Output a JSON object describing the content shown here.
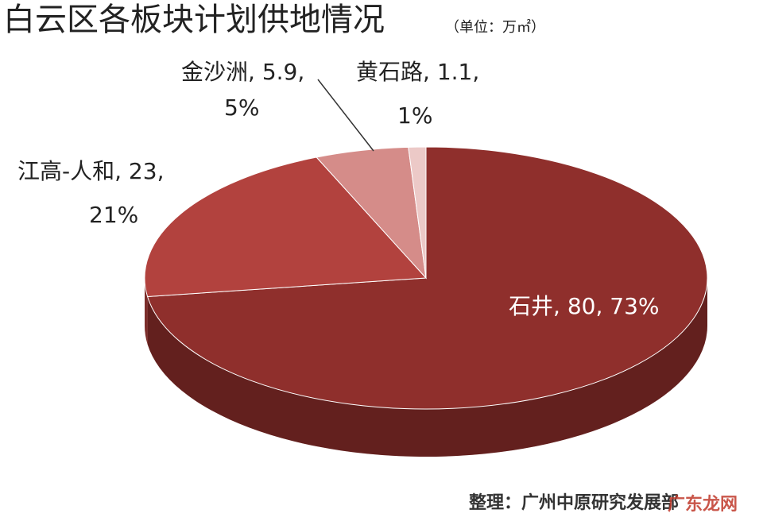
{
  "chart_data": {
    "type": "pie",
    "title": "白云区各板块计划供地情况",
    "subtitle": "（单位：万㎡）",
    "categories": [
      "石井",
      "江高-人和",
      "金沙洲",
      "黄石路"
    ],
    "values": [
      80,
      23,
      5.9,
      1.1
    ],
    "percent_labels": [
      "73%",
      "21%",
      "5%",
      "1%"
    ],
    "label_separator": ", ",
    "colors": [
      "#8f2f2c",
      "#b2423e",
      "#d58c89",
      "#ecc9c7"
    ],
    "source": "整理：广州中原研究发展部",
    "watermark": "广东龙网"
  }
}
